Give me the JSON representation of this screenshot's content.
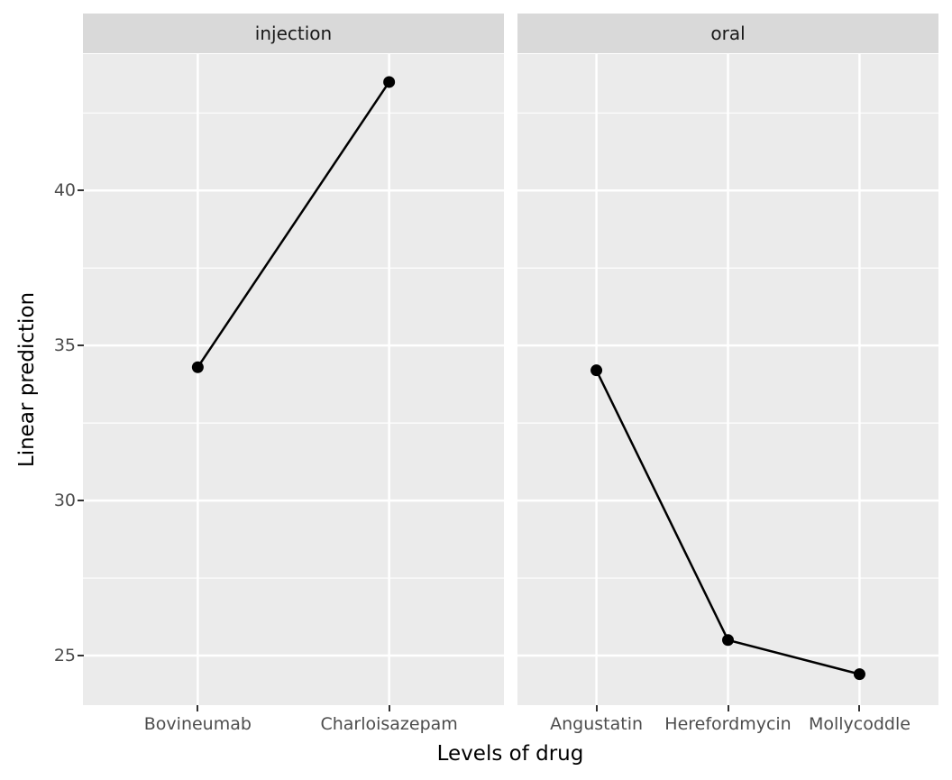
{
  "chart_data": {
    "type": "line",
    "title": "",
    "xlabel": "Levels of drug",
    "ylabel": "Linear prediction",
    "ylim": [
      23.4,
      44.4
    ],
    "y_ticks": [
      25,
      30,
      35,
      40
    ],
    "grid": true,
    "legend_position": "none",
    "facets": [
      {
        "label": "injection",
        "categories": [
          "Bovineumab",
          "Charloisazepam"
        ],
        "values": [
          34.3,
          43.5
        ]
      },
      {
        "label": "oral",
        "categories": [
          "Angustatin",
          "Herefordmycin",
          "Mollycoddle"
        ],
        "values": [
          34.2,
          25.5,
          24.4
        ]
      }
    ],
    "series_style": {
      "marker": "filled-circle",
      "marker_color": "#000000",
      "line_color": "#000000"
    }
  },
  "colors": {
    "background": "#FFFFFF",
    "panel_bg": "#EBEBEB",
    "strip_bg": "#D9D9D9",
    "gridline": "#FFFFFF",
    "axis_text": "#4D4D4D",
    "strip_text": "#1A1A1A",
    "axis_title": "#000000",
    "tick_mark": "#333333"
  }
}
